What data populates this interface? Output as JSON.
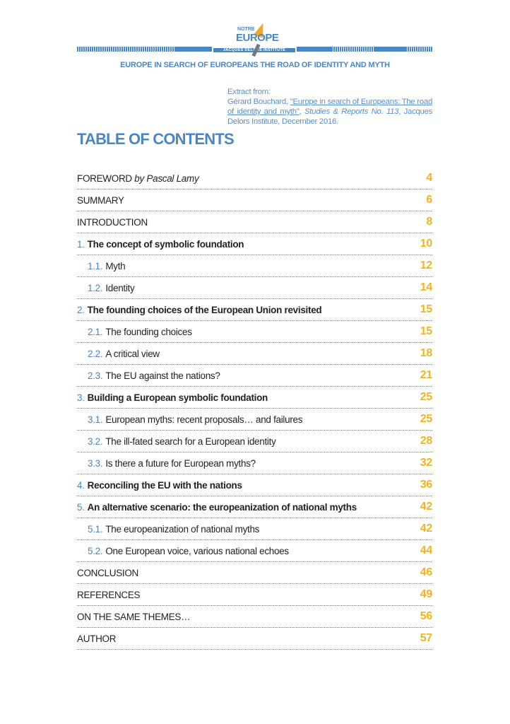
{
  "logo": {
    "line1": "NOTRE",
    "line2": "EUROPE",
    "line3": "JACQUES DELORS INSTITUTE"
  },
  "header": {
    "subtitle": "EUROPE IN SEARCH OF EUROPEANS THE ROAD OF IDENTITY AND MYTH"
  },
  "extract": {
    "intro": "Extract from:",
    "author": "Gérard Bouchard, ",
    "link": "\"Europe in search of Europeans: The road of identity and myth\"",
    "sep": ", ",
    "series": "Studies & Reports No. 113",
    "rest": ", Jacques Delors Institute, December 2016."
  },
  "toc": {
    "title": "TABLE OF CONTENTS",
    "entries": [
      {
        "num": "",
        "label": "FOREWORD ",
        "italic": "by Pascal Lamy",
        "page": "4",
        "level": 0
      },
      {
        "num": "",
        "label": "SUMMARY",
        "page": "6",
        "level": 0
      },
      {
        "num": "",
        "label": "INTRODUCTION",
        "page": "8",
        "level": 0
      },
      {
        "num": "1.",
        "label": "The concept of symbolic foundation",
        "page": "10",
        "level": 1
      },
      {
        "num": "1.1.",
        "label": "Myth",
        "page": "12",
        "level": 2
      },
      {
        "num": "1.2.",
        "label": "Identity",
        "page": "14",
        "level": 2
      },
      {
        "num": "2.",
        "label": "The founding choices of the European Union revisited",
        "page": "15",
        "level": 1
      },
      {
        "num": "2.1.",
        "label": "The founding choices",
        "page": "15",
        "level": 2
      },
      {
        "num": "2.2.",
        "label": "A critical view",
        "page": "18",
        "level": 2
      },
      {
        "num": "2.3.",
        "label": "The EU against the nations?",
        "page": "21",
        "level": 2
      },
      {
        "num": "3.",
        "label": "Building a European symbolic foundation",
        "page": "25",
        "level": 1
      },
      {
        "num": "3.1.",
        "label": "European myths: recent proposals… and failures",
        "page": "25",
        "level": 2
      },
      {
        "num": "3.2.",
        "label": "The ill-fated search for a European identity",
        "page": "28",
        "level": 2
      },
      {
        "num": "3.3.",
        "label": "Is there a future for European myths?",
        "page": "32",
        "level": 2
      },
      {
        "num": "4.",
        "label": "Reconciling the EU with the nations",
        "page": "36",
        "level": 1
      },
      {
        "num": "5.",
        "label": "An alternative scenario: the europeanization of national myths",
        "page": "42",
        "level": 1
      },
      {
        "num": "5.1.",
        "label": "The europeanization of national myths",
        "page": "42",
        "level": 2
      },
      {
        "num": "5.2.",
        "label": "One European voice, various national echoes",
        "page": "44",
        "level": 2
      },
      {
        "num": "",
        "label": "CONCLUSION",
        "page": "46",
        "level": 0
      },
      {
        "num": "",
        "label": "REFERENCES",
        "page": "49",
        "level": 0
      },
      {
        "num": "",
        "label": "ON THE SAME THEMES…",
        "page": "56",
        "level": 0
      },
      {
        "num": "",
        "label": "AUTHOR",
        "page": "57",
        "level": 0
      }
    ]
  },
  "colors": {
    "accent": "#4a86c0",
    "page_numbers": "#f0b323"
  }
}
